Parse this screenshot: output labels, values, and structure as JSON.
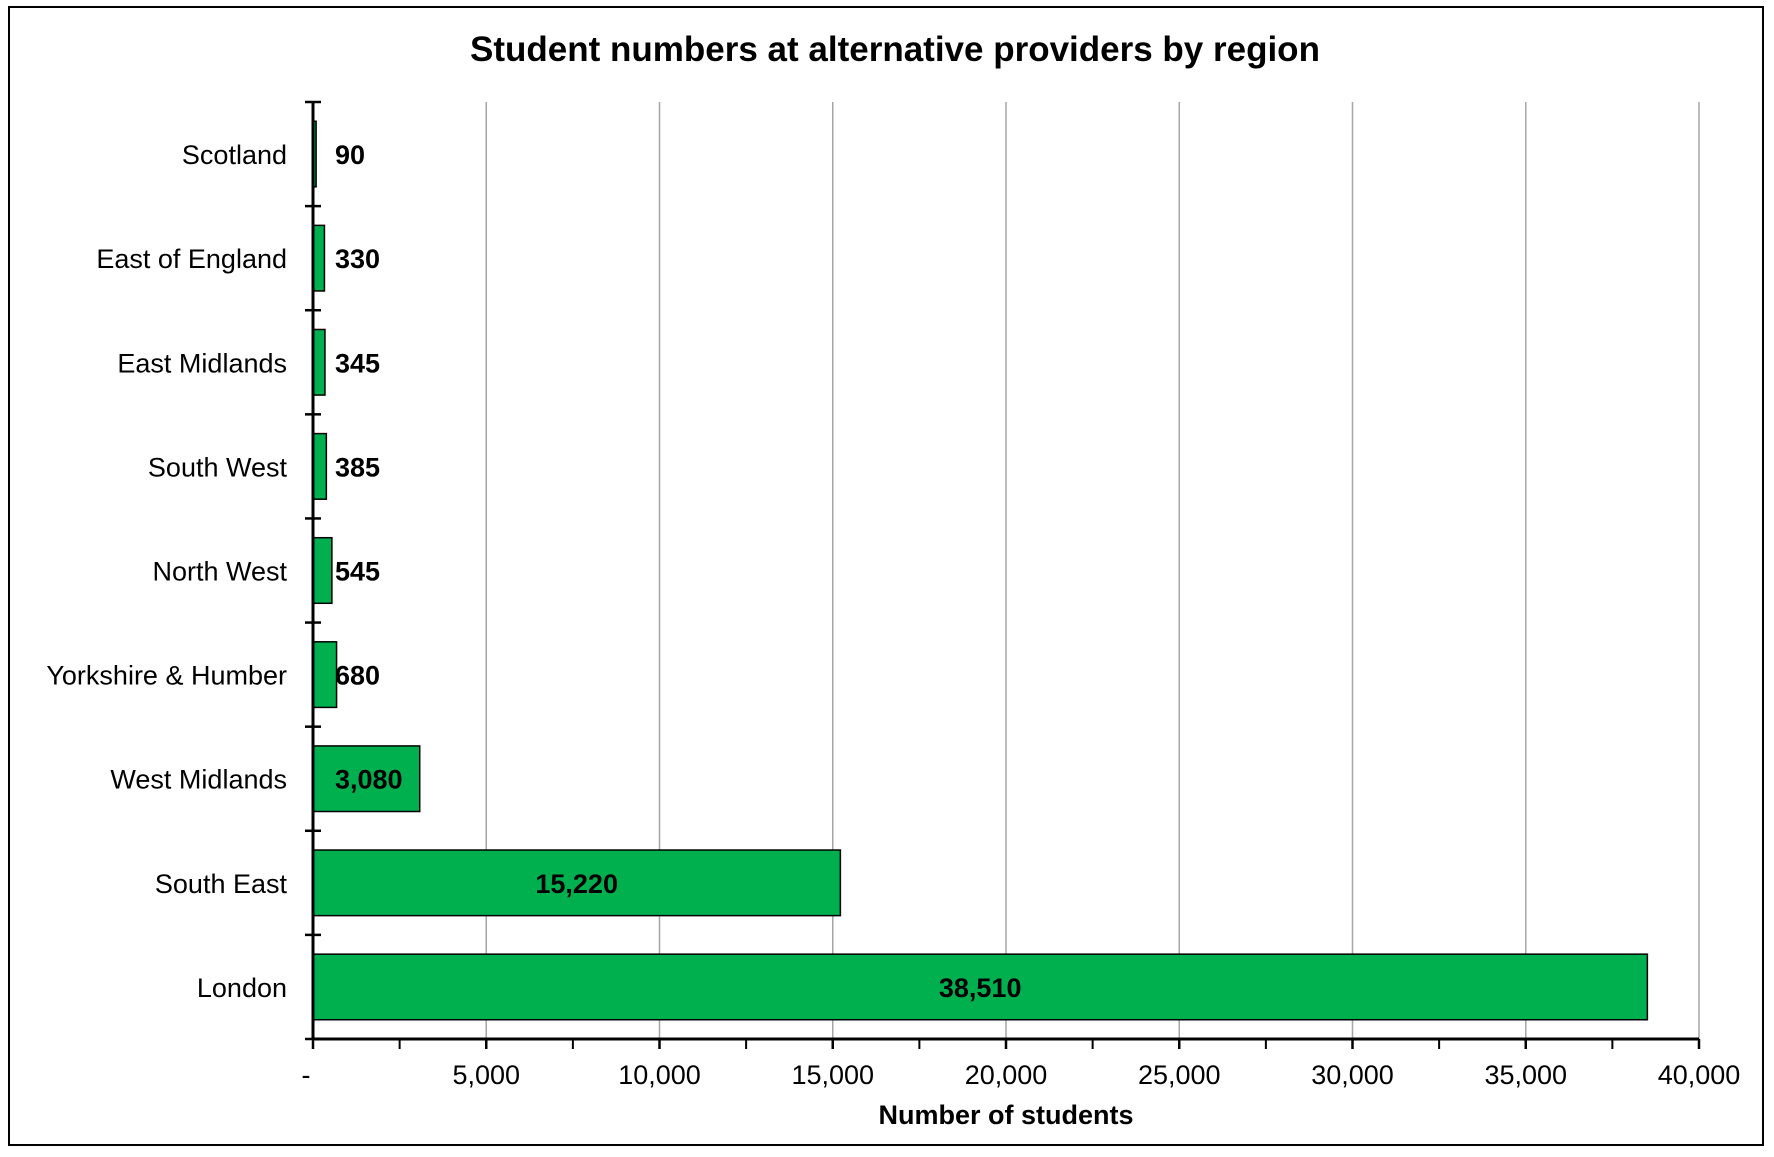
{
  "chart_data": {
    "type": "bar",
    "orientation": "horizontal",
    "title": "Student numbers at alternative providers by region",
    "xlabel": "Number of students",
    "ylabel": "",
    "categories": [
      "Scotland",
      "East of England",
      "East Midlands",
      "South West",
      "North West",
      "Yorkshire & Humber",
      "West Midlands",
      "South East",
      "London"
    ],
    "values": [
      90,
      330,
      345,
      385,
      545,
      680,
      3080,
      15220,
      38510
    ],
    "value_labels": [
      "90",
      "330",
      "345",
      "385",
      "545",
      "680",
      "3,080",
      "15,220",
      "38,510"
    ],
    "xlim": [
      0,
      40000
    ],
    "x_ticks": [
      0,
      5000,
      10000,
      15000,
      20000,
      25000,
      30000,
      35000,
      40000
    ],
    "x_tick_labels": [
      "-",
      "5,000",
      "10,000",
      "15,000",
      "20,000",
      "25,000",
      "30,000",
      "35,000",
      "40,000"
    ],
    "grid": "vertical",
    "legend": "none",
    "bar_color": "#00b04f",
    "grid_color": "#a6a6a6"
  }
}
